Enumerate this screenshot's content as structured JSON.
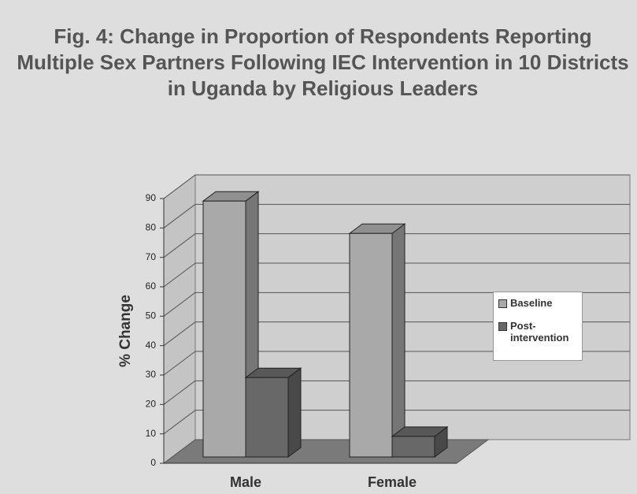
{
  "chart_data": {
    "type": "bar3d",
    "title": "Fig. 4: Change in Proportion of Respondents Reporting Multiple Sex Partners Following IEC Intervention in 10 Districts in Uganda by Religious Leaders",
    "y_label": "% Change",
    "categories": [
      "Male",
      "Female"
    ],
    "series": [
      {
        "name": "Baseline",
        "color": "#a9a9a9",
        "values": [
          87,
          76
        ]
      },
      {
        "name": "Post-intervention",
        "color": "#686868",
        "values": [
          27,
          7
        ]
      }
    ],
    "ylim": [
      0,
      90
    ],
    "yticks": [
      0,
      10,
      20,
      30,
      40,
      50,
      60,
      70,
      80,
      90
    ],
    "grid": true,
    "legend": "right"
  }
}
